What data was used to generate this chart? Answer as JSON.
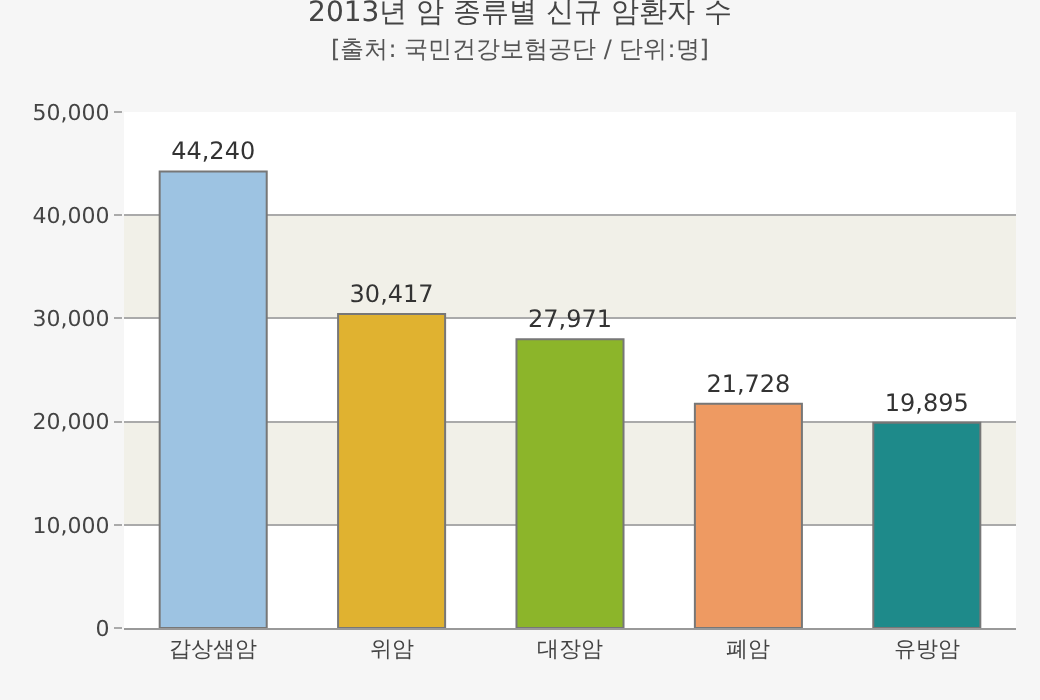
{
  "chart_data": {
    "type": "bar",
    "title": "2013년 암 종류별 신규 암환자 수",
    "subtitle": "[출처: 국민건강보험공단 / 단위:명]",
    "categories": [
      "갑상샘암",
      "위암",
      "대장암",
      "폐암",
      "유방암"
    ],
    "values": [
      44240,
      30417,
      27971,
      21728,
      19895
    ],
    "colors": [
      "#9dc3e2",
      "#e0b230",
      "#8cb52a",
      "#ee9a62",
      "#1e8a8a"
    ],
    "value_labels": [
      "44,240",
      "30,417",
      "27,971",
      "21,728",
      "19,895"
    ],
    "ylim": [
      0,
      50000
    ],
    "yticks": [
      {
        "value": 0,
        "label": "0"
      },
      {
        "value": 10000,
        "label": "10,000"
      },
      {
        "value": 20000,
        "label": "20,000"
      },
      {
        "value": 30000,
        "label": "30,000"
      },
      {
        "value": 40000,
        "label": "40,000"
      },
      {
        "value": 50000,
        "label": "50,000"
      }
    ],
    "grid": "y",
    "bands": [
      {
        "axis": "y",
        "from": 10000,
        "to": 20000,
        "color": "#f1f0e8"
      },
      {
        "axis": "y",
        "from": 30000,
        "to": 40000,
        "color": "#f1f0e8"
      }
    ]
  }
}
